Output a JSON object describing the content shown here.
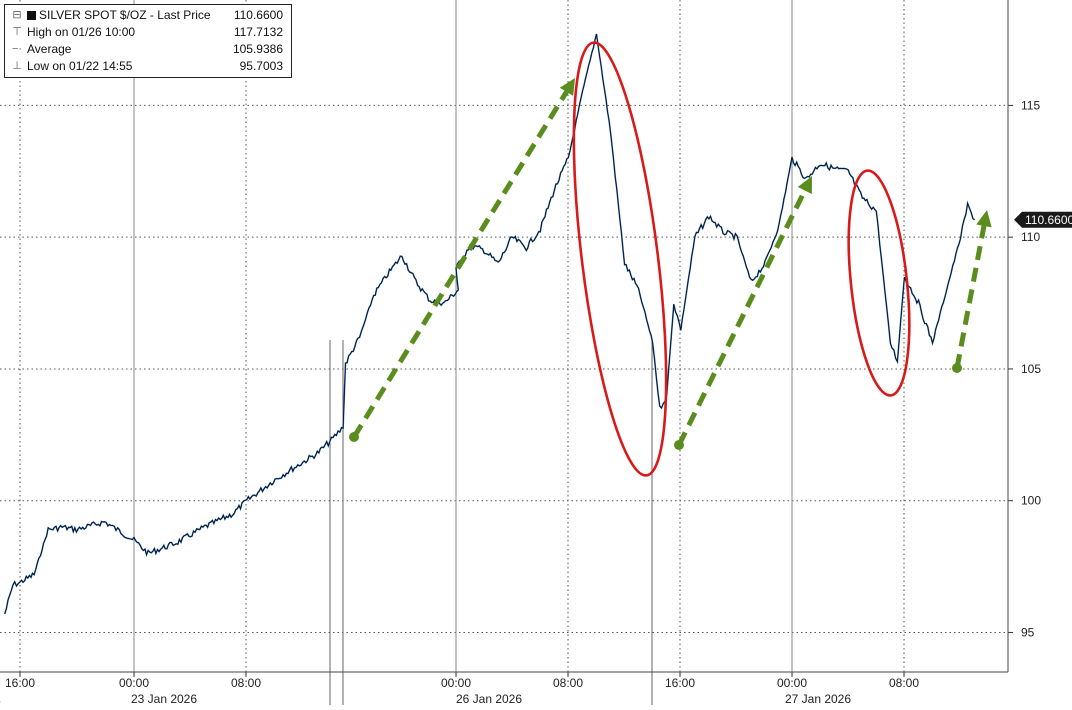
{
  "legend": {
    "series_name": "SILVER SPOT $/OZ - Last Price",
    "last_value": "110.6600",
    "high_label": "High on 01/26 10:00",
    "high_value": "117.7132",
    "avg_label": "Average",
    "avg_value": "105.9386",
    "low_label": "Low on 01/22 14:55",
    "low_value": "95.7003"
  },
  "last_price_tag": "110.6600",
  "colors": {
    "price_line": "#111111",
    "price_highlight": "#2e7bd6",
    "annotation_arrow": "#5a8c1e",
    "annotation_circle": "#d71a1a",
    "last_tag_bg": "#1a1a1a"
  },
  "chart_data": {
    "type": "line",
    "title": "",
    "series": [
      {
        "name": "SILVER SPOT $/OZ - Last Price",
        "points": [
          [
            "01/22 14:55",
            95.7
          ],
          [
            "01/22 15:30",
            96.8
          ],
          [
            "01/22 16:00",
            96.9
          ],
          [
            "01/22 17:00",
            97.2
          ],
          [
            "01/22 18:00",
            98.9
          ],
          [
            "01/22 19:00",
            99.0
          ],
          [
            "01/22 20:00",
            98.9
          ],
          [
            "01/22 22:00",
            99.2
          ],
          [
            "01/23 00:00",
            98.5
          ],
          [
            "01/23 01:00",
            98.0
          ],
          [
            "01/23 03:00",
            98.4
          ],
          [
            "01/23 05:00",
            99.0
          ],
          [
            "01/23 07:00",
            99.5
          ],
          [
            "01/23 08:00",
            100.0
          ],
          [
            "01/23 09:00",
            100.4
          ],
          [
            "01/23 10:00",
            100.8
          ],
          [
            "01/23 11:30",
            101.3
          ],
          [
            "01/23 13:00",
            101.8
          ],
          [
            "01/23 14:00",
            102.3
          ],
          [
            "01/23 14:50",
            102.8
          ],
          [
            "01/23 15:00",
            105.2
          ],
          [
            "01/23 16:00",
            106.2
          ],
          [
            "01/23 17:00",
            107.8
          ],
          [
            "01/23 18:00",
            108.6
          ],
          [
            "01/23 19:00",
            109.3
          ],
          [
            "01/23 20:00",
            108.3
          ],
          [
            "01/23 21:00",
            107.6
          ],
          [
            "01/23 22:00",
            107.5
          ],
          [
            "01/23 23:00",
            108.0
          ],
          [
            "01/26 00:00",
            108.8
          ],
          [
            "01/26 01:00",
            109.7
          ],
          [
            "01/26 02:00",
            109.5
          ],
          [
            "01/26 03:00",
            109.0
          ],
          [
            "01/26 04:00",
            110.0
          ],
          [
            "01/26 05:00",
            109.6
          ],
          [
            "01/26 06:00",
            110.3
          ],
          [
            "01/26 07:00",
            111.8
          ],
          [
            "01/26 08:00",
            113.0
          ],
          [
            "01/26 09:00",
            115.5
          ],
          [
            "01/26 10:00",
            117.71
          ],
          [
            "01/26 11:00",
            114.0
          ],
          [
            "01/26 12:00",
            109.0
          ],
          [
            "01/26 13:00",
            108.0
          ],
          [
            "01/26 14:00",
            106.0
          ],
          [
            "01/26 14:30",
            103.5
          ],
          [
            "01/26 15:00",
            104.0
          ],
          [
            "01/26 15:30",
            107.5
          ],
          [
            "01/26 16:00",
            106.5
          ],
          [
            "01/26 17:00",
            110.0
          ],
          [
            "01/26 18:00",
            110.8
          ],
          [
            "01/26 19:00",
            110.2
          ],
          [
            "01/26 20:00",
            110.0
          ],
          [
            "01/26 21:00",
            108.3
          ],
          [
            "01/26 22:00",
            109.0
          ],
          [
            "01/26 23:00",
            110.5
          ],
          [
            "01/27 00:00",
            113.0
          ],
          [
            "01/27 01:00",
            112.2
          ],
          [
            "01/27 02:00",
            112.8
          ],
          [
            "01/27 03:00",
            112.6
          ],
          [
            "01/27 04:00",
            112.5
          ],
          [
            "01/27 05:00",
            111.5
          ],
          [
            "01/27 06:00",
            111.0
          ],
          [
            "01/27 06:30",
            108.5
          ],
          [
            "01/27 07:00",
            106.0
          ],
          [
            "01/27 07:30",
            105.3
          ],
          [
            "01/27 08:00",
            108.5
          ],
          [
            "01/27 09:00",
            107.5
          ],
          [
            "01/27 10:00",
            106.0
          ],
          [
            "01/27 11:00",
            108.0
          ],
          [
            "01/27 12:00",
            110.0
          ],
          [
            "01/27 12:30",
            111.2
          ],
          [
            "01/27 13:00",
            110.66
          ]
        ]
      }
    ],
    "ylim": [
      93.5,
      119
    ],
    "yticks": [
      95,
      100,
      105,
      110,
      115
    ],
    "x_tick_labels": [
      "16:00",
      "00:00",
      "08:00",
      "00:00",
      "08:00",
      "16:00",
      "00:00",
      "08:00"
    ],
    "date_labels": [
      "23 Jan 2026",
      "26 Jan 2026",
      "27 Jan 2026"
    ],
    "grid": true,
    "legend_position": "top-left"
  }
}
